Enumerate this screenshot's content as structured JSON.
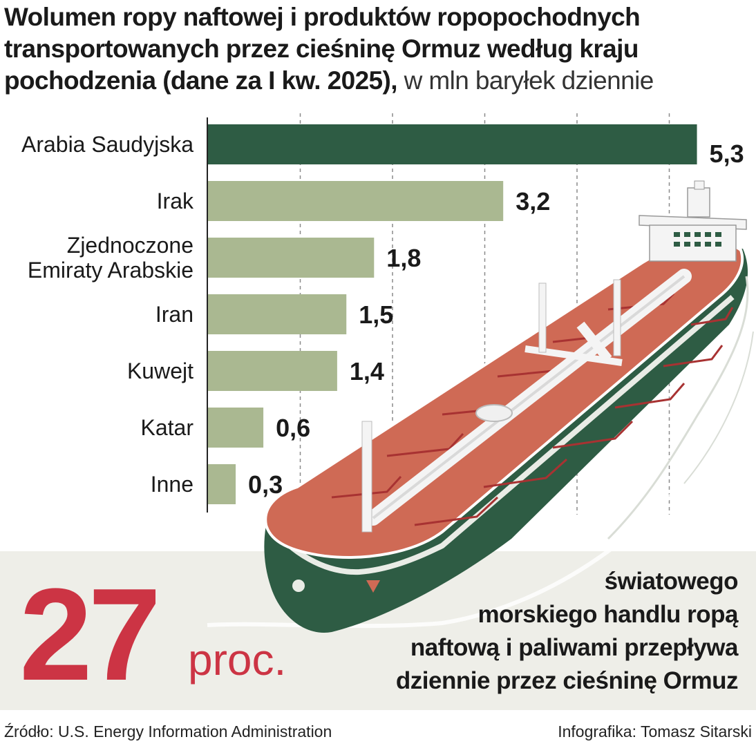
{
  "title": {
    "bold": "Wolumen ropy naftowej i produktów ropopochodnych transportowanych przez cieśninę Ormuz według kraju pochodzenia (dane za I kw. 2025),",
    "light": " w mln baryłek dziennie"
  },
  "chart_data": {
    "type": "bar",
    "orientation": "horizontal",
    "categories": [
      "Arabia Saudyjska",
      "Irak",
      "Zjednoczone Emiraty Arabskie",
      "Iran",
      "Kuwejt",
      "Katar",
      "Inne"
    ],
    "category_lines": [
      [
        "Arabia Saudyjska"
      ],
      [
        "Irak"
      ],
      [
        "Zjednoczone",
        "Emiraty Arabskie"
      ],
      [
        "Iran"
      ],
      [
        "Kuwejt"
      ],
      [
        "Katar"
      ],
      [
        "Inne"
      ]
    ],
    "values": [
      5.3,
      3.2,
      1.8,
      1.5,
      1.4,
      0.6,
      0.3
    ],
    "value_labels": [
      "5,3",
      "3,2",
      "1,8",
      "1,5",
      "1,4",
      "0,6",
      "0,3"
    ],
    "xlim": [
      0,
      5
    ],
    "gridlines": [
      1,
      2,
      3,
      4,
      5
    ],
    "grid": true,
    "highlight_color": "#2e5c44",
    "bar_color": "#aab891"
  },
  "callout": {
    "number": "27",
    "unit": "proc.",
    "lines": [
      "światowego",
      "morskiego handlu ropą",
      "naftową i paliwami przepływa",
      "dziennie przez cieśninę Ormuz"
    ]
  },
  "footer": {
    "source": "Źródło: U.S. Energy Information Administration",
    "author": "Infografika: Tomasz Sitarski"
  },
  "colors": {
    "accent": "#cc3444",
    "hull": "#2e5c44",
    "deck": "#cf6a55"
  }
}
